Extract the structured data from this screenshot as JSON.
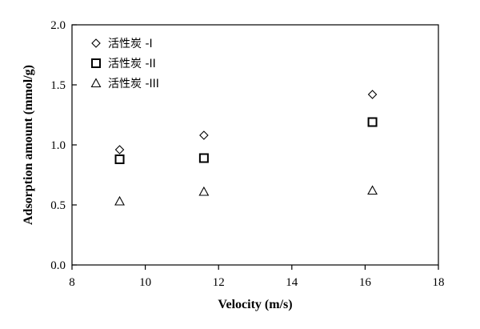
{
  "chart_data": {
    "type": "scatter",
    "xlabel": "Velocity (m/s)",
    "ylabel": "Adsorption amount (mmol/g)",
    "xlim": [
      8,
      18
    ],
    "ylim": [
      0.0,
      2.0
    ],
    "x_ticks": [
      "8",
      "10",
      "12",
      "14",
      "16",
      "18"
    ],
    "y_ticks": [
      "0.0",
      "0.5",
      "1.0",
      "1.5",
      "2.0"
    ],
    "grid": false,
    "legend_position": "top-left",
    "series": [
      {
        "name": "活性炭 -I",
        "marker": "diamond",
        "x": [
          9.3,
          11.6,
          16.2
        ],
        "y": [
          0.96,
          1.08,
          1.42
        ]
      },
      {
        "name": "活性炭 -II",
        "marker": "square",
        "x": [
          9.3,
          11.6,
          16.2
        ],
        "y": [
          0.88,
          0.89,
          1.19
        ]
      },
      {
        "name": "活性炭 -III",
        "marker": "triangle",
        "x": [
          9.3,
          11.6,
          16.2
        ],
        "y": [
          0.53,
          0.61,
          0.62
        ]
      }
    ]
  }
}
